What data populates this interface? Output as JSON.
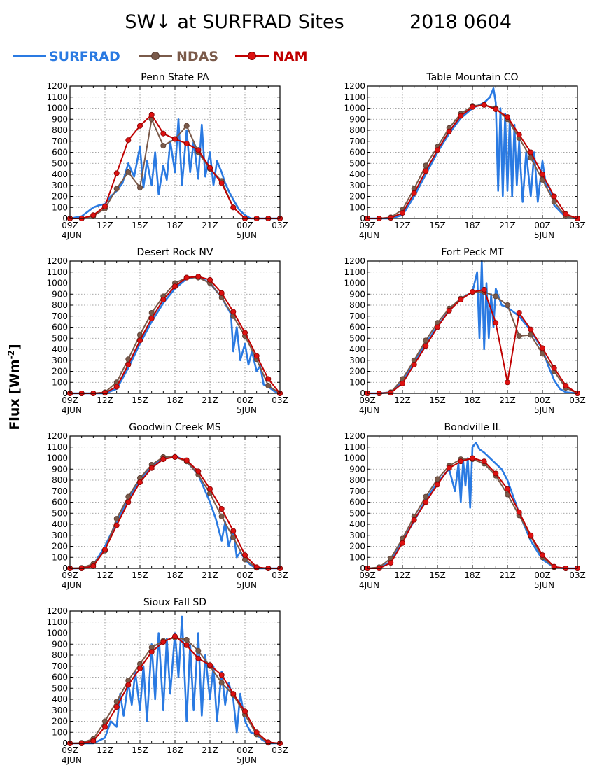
{
  "figure": {
    "title": "SW↓ at SURFRAD Sites",
    "date": "2018 0604",
    "ylabel": "Flux [Wm",
    "ylabel_sup": "-2",
    "ylabel_close": "]"
  },
  "legend": [
    {
      "name": "SURFRAD",
      "color": "#2a7ae2",
      "marker": false
    },
    {
      "name": "NDAS",
      "color": "#7a5a4a",
      "marker": true
    },
    {
      "name": "NAM",
      "color": "#c00000",
      "marker": true
    }
  ],
  "axes": {
    "x_ticks": [
      "09Z",
      "12Z",
      "15Z",
      "18Z",
      "21Z",
      "00Z",
      "03Z"
    ],
    "x_dates": [
      {
        "tick": "09Z",
        "text": "4JUN"
      },
      {
        "tick": "00Z",
        "text": "5JUN"
      }
    ],
    "y_ticks": [
      0,
      100,
      200,
      300,
      400,
      500,
      600,
      700,
      800,
      900,
      1000,
      1100,
      1200
    ],
    "ylim": [
      0,
      1200
    ],
    "xlim_hours": [
      9,
      27
    ],
    "grid": true
  },
  "chart_data": [
    {
      "title": "Penn State PA",
      "type": "line",
      "x_hours": [
        9,
        10,
        11,
        12,
        13,
        14,
        15,
        16,
        17,
        18,
        19,
        20,
        21,
        22,
        23,
        24,
        25,
        26,
        27
      ],
      "series": [
        {
          "name": "NDAS",
          "values": [
            0,
            0,
            20,
            90,
            270,
            420,
            280,
            900,
            660,
            720,
            840,
            600,
            450,
            340,
            100,
            0,
            0,
            0,
            0
          ]
        },
        {
          "name": "NAM",
          "values": [
            0,
            0,
            30,
            110,
            410,
            710,
            840,
            940,
            770,
            720,
            680,
            620,
            460,
            320,
            100,
            0,
            0,
            0,
            0
          ]
        },
        {
          "name": "SURFRAD",
          "x": [
            9,
            10,
            11,
            11.5,
            12,
            12.5,
            13,
            13.5,
            14,
            14.5,
            15,
            15.3,
            15.6,
            16,
            16.3,
            16.6,
            17,
            17.3,
            17.6,
            18,
            18.3,
            18.6,
            19,
            19.3,
            19.6,
            20,
            20.3,
            20.6,
            21,
            21.3,
            21.6,
            22,
            22.3,
            22.6,
            23,
            23.5,
            24,
            24.5,
            25,
            27
          ],
          "values": [
            0,
            20,
            100,
            120,
            130,
            200,
            250,
            320,
            500,
            380,
            650,
            280,
            520,
            300,
            600,
            220,
            480,
            350,
            700,
            420,
            900,
            300,
            800,
            420,
            700,
            360,
            850,
            380,
            600,
            300,
            520,
            420,
            320,
            250,
            170,
            80,
            30,
            0,
            0,
            0
          ]
        }
      ]
    },
    {
      "title": "Table Mountain CO",
      "type": "line",
      "x_hours": [
        9,
        10,
        11,
        12,
        13,
        14,
        15,
        16,
        17,
        18,
        19,
        20,
        21,
        22,
        23,
        24,
        25,
        26,
        27
      ],
      "series": [
        {
          "name": "NDAS",
          "values": [
            0,
            0,
            10,
            80,
            270,
            480,
            650,
            820,
            950,
            1020,
            1030,
            1000,
            900,
            730,
            550,
            350,
            150,
            20,
            0
          ]
        },
        {
          "name": "NAM",
          "values": [
            0,
            0,
            5,
            50,
            230,
            430,
            620,
            790,
            930,
            1010,
            1030,
            990,
            920,
            760,
            600,
            400,
            200,
            40,
            0
          ]
        },
        {
          "name": "SURFRAD",
          "x": [
            9,
            10,
            11,
            12,
            13,
            14,
            15,
            16,
            17,
            18,
            19,
            19.5,
            19.8,
            20,
            20.2,
            20.4,
            20.6,
            20.8,
            21,
            21.2,
            21.4,
            21.6,
            21.8,
            22,
            22.3,
            22.6,
            23,
            23.3,
            23.6,
            24,
            24.3,
            24.6,
            25,
            26,
            27
          ],
          "values": [
            0,
            0,
            0,
            30,
            200,
            400,
            600,
            770,
            910,
            1000,
            1050,
            1100,
            1180,
            1050,
            250,
            1000,
            200,
            950,
            250,
            900,
            200,
            850,
            300,
            700,
            150,
            600,
            200,
            600,
            150,
            520,
            300,
            280,
            120,
            10,
            0
          ]
        }
      ]
    },
    {
      "title": "Desert Rock NV",
      "type": "line",
      "x_hours": [
        9,
        10,
        11,
        12,
        13,
        14,
        15,
        16,
        17,
        18,
        19,
        20,
        21,
        22,
        23,
        24,
        25,
        26,
        27
      ],
      "series": [
        {
          "name": "NDAS",
          "values": [
            0,
            0,
            0,
            10,
            100,
            310,
            530,
            730,
            880,
            1000,
            1050,
            1050,
            1000,
            870,
            700,
            520,
            310,
            70,
            0
          ]
        },
        {
          "name": "NAM",
          "values": [
            0,
            0,
            0,
            5,
            60,
            260,
            480,
            680,
            850,
            970,
            1050,
            1060,
            1030,
            910,
            740,
            550,
            340,
            130,
            0
          ]
        },
        {
          "name": "SURFRAD",
          "x": [
            9,
            11,
            12,
            13,
            14,
            15,
            16,
            17,
            18,
            19,
            20,
            21,
            22,
            22.8,
            23,
            23.3,
            23.6,
            24,
            24.3,
            24.6,
            25,
            25.3,
            25.6,
            26,
            26.5,
            27
          ],
          "values": [
            0,
            0,
            0,
            40,
            230,
            450,
            650,
            820,
            950,
            1040,
            1060,
            1000,
            870,
            720,
            380,
            600,
            300,
            450,
            260,
            380,
            200,
            250,
            80,
            60,
            20,
            0
          ]
        }
      ]
    },
    {
      "title": "Fort Peck MT",
      "type": "line",
      "x_hours": [
        9,
        10,
        11,
        12,
        13,
        14,
        15,
        16,
        17,
        18,
        19,
        20,
        21,
        22,
        23,
        24,
        25,
        26,
        27
      ],
      "series": [
        {
          "name": "NDAS",
          "values": [
            0,
            0,
            10,
            130,
            300,
            480,
            640,
            770,
            860,
            920,
            920,
            880,
            800,
            520,
            530,
            360,
            200,
            50,
            0
          ]
        },
        {
          "name": "NAM",
          "values": [
            0,
            0,
            5,
            90,
            260,
            430,
            600,
            750,
            850,
            920,
            940,
            640,
            100,
            730,
            580,
            410,
            230,
            70,
            0
          ]
        },
        {
          "name": "SURFRAD",
          "x": [
            9,
            10,
            11,
            12,
            13,
            14,
            15,
            16,
            17,
            18,
            18.4,
            18.6,
            18.8,
            19,
            19.2,
            19.4,
            19.6,
            19.8,
            20,
            20.5,
            21,
            22,
            23,
            24,
            24.5,
            25,
            25.5,
            26,
            27
          ],
          "values": [
            0,
            0,
            10,
            100,
            280,
            450,
            610,
            750,
            860,
            920,
            1100,
            500,
            1200,
            400,
            1000,
            500,
            900,
            600,
            950,
            800,
            780,
            700,
            570,
            400,
            250,
            120,
            40,
            10,
            0
          ]
        }
      ]
    },
    {
      "title": "Goodwin Creek MS",
      "type": "line",
      "x_hours": [
        9,
        10,
        11,
        12,
        13,
        14,
        15,
        16,
        17,
        18,
        19,
        20,
        21,
        22,
        23,
        24,
        25,
        26,
        27
      ],
      "series": [
        {
          "name": "NDAS",
          "values": [
            0,
            5,
            40,
            160,
            450,
            650,
            820,
            940,
            1010,
            1010,
            970,
            850,
            680,
            470,
            280,
            80,
            5,
            0,
            0
          ]
        },
        {
          "name": "NAM",
          "values": [
            0,
            0,
            20,
            170,
            390,
            600,
            780,
            910,
            990,
            1010,
            980,
            880,
            720,
            540,
            340,
            120,
            10,
            0,
            0
          ]
        },
        {
          "name": "SURFRAD",
          "x": [
            9,
            10,
            11,
            12,
            13,
            14,
            15,
            16,
            17,
            18,
            19,
            20,
            21,
            21.5,
            22,
            22.3,
            22.6,
            23,
            23.3,
            23.6,
            24,
            24.5,
            25,
            26,
            27
          ],
          "values": [
            0,
            0,
            30,
            200,
            420,
            630,
            800,
            930,
            1000,
            1020,
            970,
            850,
            600,
            450,
            250,
            420,
            200,
            350,
            100,
            150,
            80,
            30,
            0,
            0,
            0
          ]
        }
      ]
    },
    {
      "title": "Bondville IL",
      "type": "line",
      "x_hours": [
        9,
        10,
        11,
        12,
        13,
        14,
        15,
        16,
        17,
        18,
        19,
        20,
        21,
        22,
        23,
        24,
        25,
        26,
        27
      ],
      "series": [
        {
          "name": "NDAS",
          "values": [
            0,
            10,
            90,
            270,
            470,
            650,
            810,
            930,
            990,
            990,
            950,
            840,
            670,
            480,
            290,
            100,
            10,
            0,
            0
          ]
        },
        {
          "name": "NAM",
          "values": [
            0,
            0,
            50,
            230,
            440,
            600,
            760,
            910,
            970,
            1000,
            970,
            860,
            720,
            510,
            300,
            120,
            15,
            0,
            0
          ]
        },
        {
          "name": "SURFRAD",
          "x": [
            9,
            10,
            11,
            12,
            13,
            14,
            15,
            16,
            16.5,
            16.8,
            17,
            17.2,
            17.4,
            17.6,
            17.8,
            18,
            18.3,
            18.6,
            19,
            19.5,
            20,
            20.5,
            21,
            22,
            23,
            24,
            25,
            26,
            27
          ],
          "values": [
            0,
            5,
            60,
            250,
            430,
            620,
            780,
            900,
            700,
            950,
            600,
            980,
            750,
            1000,
            550,
            1100,
            1140,
            1080,
            1050,
            1000,
            950,
            900,
            800,
            500,
            250,
            80,
            10,
            0,
            0
          ]
        }
      ]
    },
    {
      "title": "Sioux Fall SD",
      "type": "line",
      "x_hours": [
        9,
        10,
        11,
        12,
        13,
        14,
        15,
        16,
        17,
        18,
        19,
        20,
        21,
        22,
        23,
        24,
        25,
        26,
        27
      ],
      "series": [
        {
          "name": "NDAS",
          "values": [
            0,
            5,
            40,
            200,
            380,
            570,
            720,
            870,
            930,
            960,
            940,
            840,
            700,
            550,
            440,
            260,
            80,
            5,
            0
          ]
        },
        {
          "name": "NAM",
          "values": [
            0,
            0,
            20,
            150,
            330,
            530,
            680,
            830,
            920,
            970,
            890,
            770,
            710,
            620,
            450,
            290,
            100,
            10,
            0
          ]
        },
        {
          "name": "SURFRAD",
          "x": [
            9,
            10,
            11,
            12,
            12.5,
            13,
            13.3,
            13.6,
            14,
            14.3,
            14.6,
            15,
            15.3,
            15.6,
            16,
            16.3,
            16.6,
            17,
            17.3,
            17.6,
            18,
            18.3,
            18.6,
            19,
            19.3,
            19.6,
            20,
            20.3,
            20.6,
            21,
            21.3,
            21.6,
            22,
            22.3,
            22.6,
            23,
            23.3,
            23.6,
            24,
            24.5,
            25,
            25.5,
            26,
            27
          ],
          "values": [
            0,
            0,
            0,
            50,
            200,
            150,
            450,
            250,
            550,
            350,
            650,
            300,
            700,
            200,
            900,
            400,
            1000,
            300,
            950,
            450,
            1000,
            600,
            1150,
            200,
            900,
            300,
            1000,
            250,
            800,
            400,
            700,
            200,
            650,
            350,
            550,
            400,
            100,
            450,
            200,
            100,
            80,
            30,
            0,
            0
          ]
        }
      ]
    }
  ]
}
